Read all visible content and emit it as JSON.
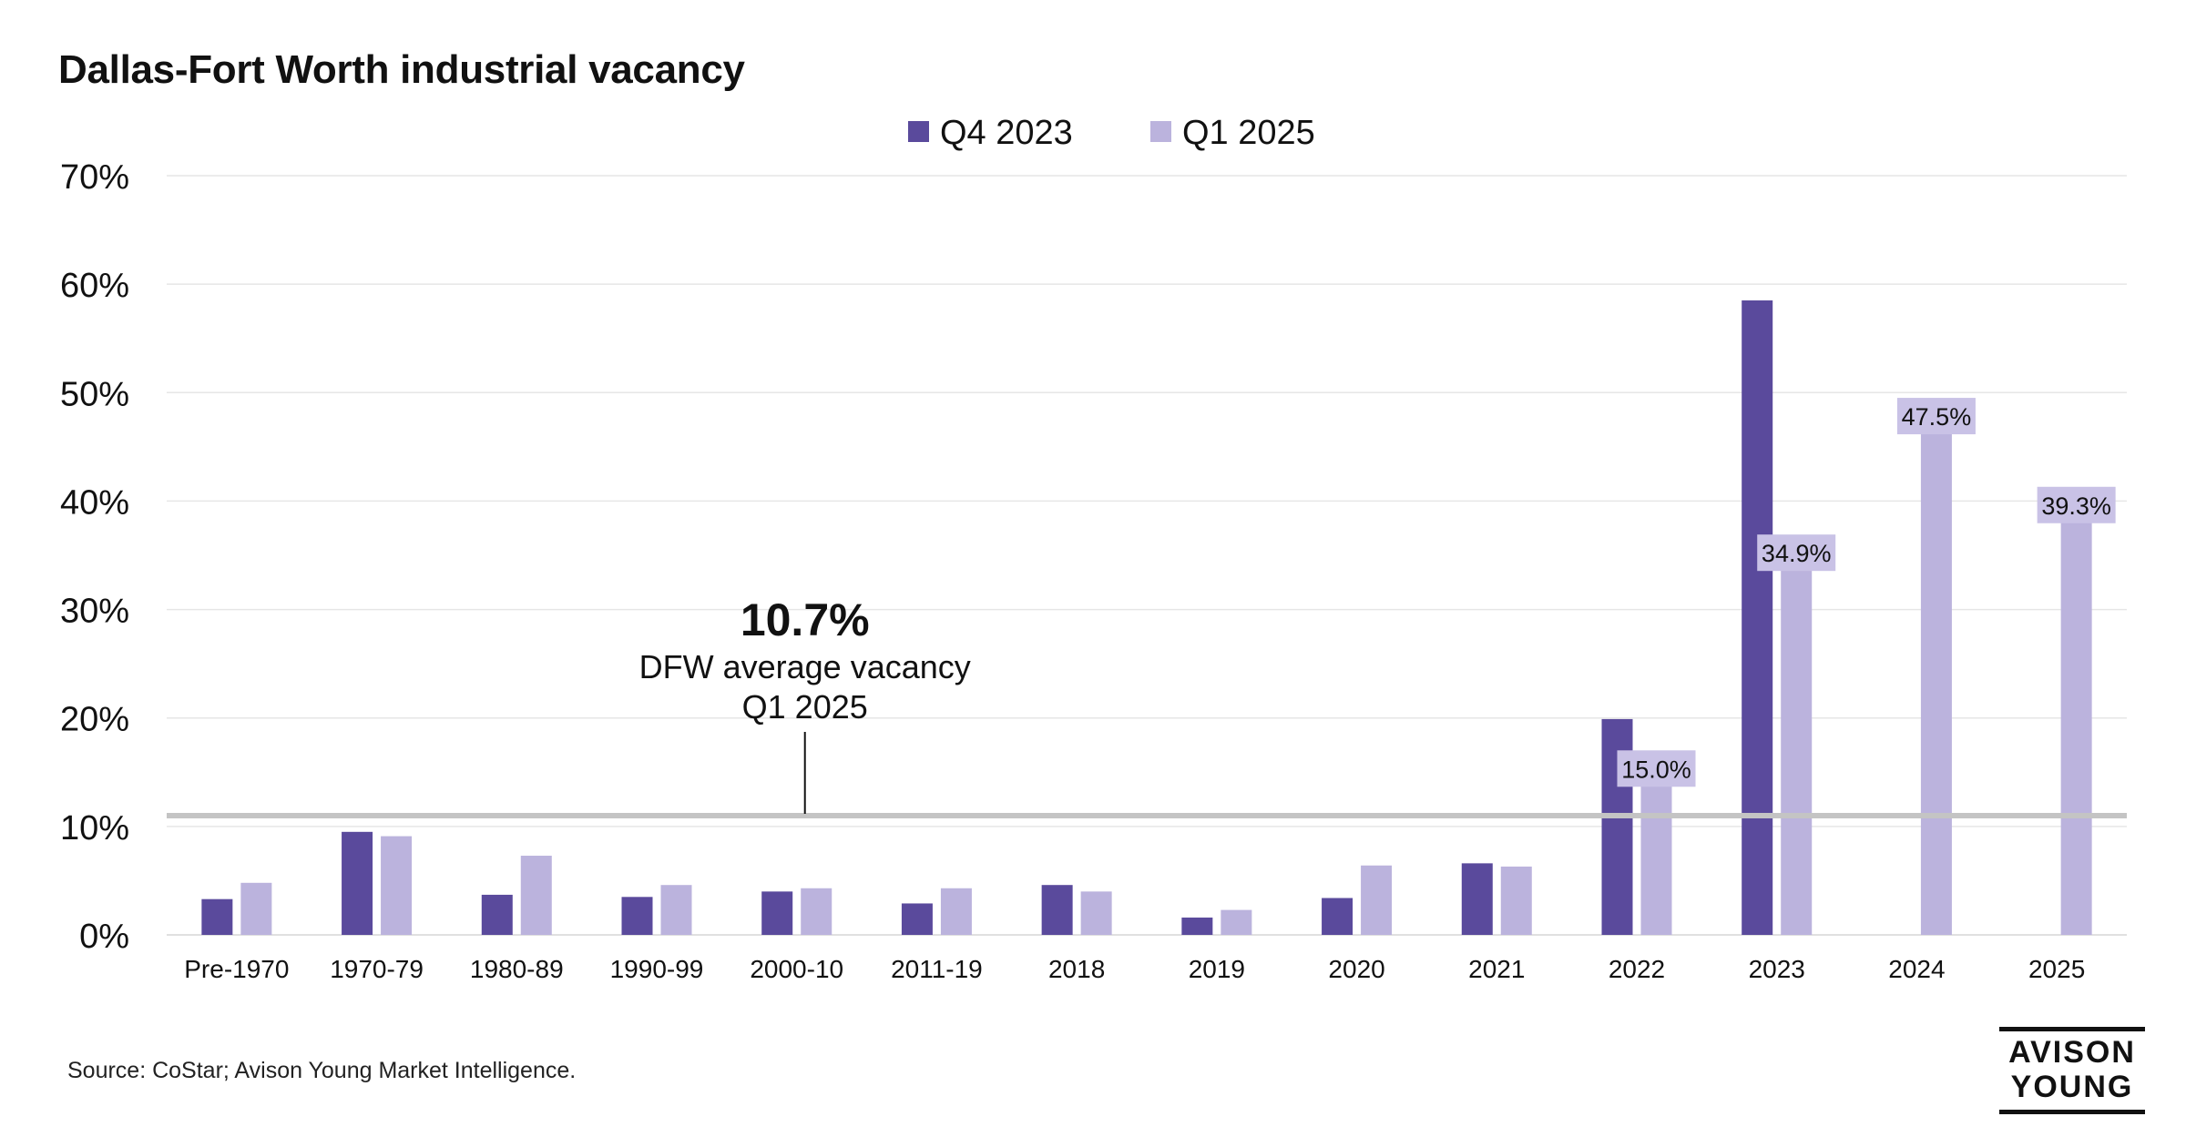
{
  "title": "Dallas-Fort Worth industrial vacancy",
  "source": "Source: CoStar; Avison Young Market Intelligence.",
  "logo": {
    "line1": "AVISON",
    "line2": "YOUNG"
  },
  "colors": {
    "series1": "#5a4a9c",
    "series2": "#bbb3dd",
    "reference": "#c4c4c4",
    "label_box": "#c9c2e6"
  },
  "chart_data": {
    "type": "bar",
    "title": "Dallas-Fort Worth industrial vacancy",
    "xlabel": "",
    "ylabel": "",
    "ylim": [
      0,
      70
    ],
    "yticks": [
      "0%",
      "10%",
      "20%",
      "30%",
      "40%",
      "50%",
      "60%",
      "70%"
    ],
    "categories": [
      "Pre-1970",
      "1970-79",
      "1980-89",
      "1990-99",
      "2000-10",
      "2011-19",
      "2018",
      "2019",
      "2020",
      "2021",
      "2022",
      "2023",
      "2024",
      "2025"
    ],
    "series": [
      {
        "name": "Q4 2023",
        "values": [
          3.3,
          9.5,
          3.7,
          3.5,
          4.0,
          2.9,
          4.6,
          1.6,
          3.4,
          6.6,
          19.9,
          58.5,
          null,
          null
        ]
      },
      {
        "name": "Q1 2025",
        "values": [
          4.8,
          9.1,
          7.3,
          4.6,
          4.3,
          4.3,
          4.0,
          2.3,
          6.4,
          6.3,
          15.0,
          34.9,
          47.5,
          39.3
        ]
      }
    ],
    "data_labels": [
      {
        "category": "2022",
        "series": "Q1 2025",
        "text": "15.0%"
      },
      {
        "category": "2023",
        "series": "Q1 2025",
        "text": "34.9%"
      },
      {
        "category": "2024",
        "series": "Q1 2025",
        "text": "47.5%"
      },
      {
        "category": "2025",
        "series": "Q1 2025",
        "text": "39.3%"
      }
    ],
    "reference_line": {
      "value": 11,
      "headline": "10.7%",
      "line1": "DFW average vacancy",
      "line2": "Q1 2025",
      "category": "2000-10"
    },
    "legend_position": "top-center",
    "grid": true
  }
}
